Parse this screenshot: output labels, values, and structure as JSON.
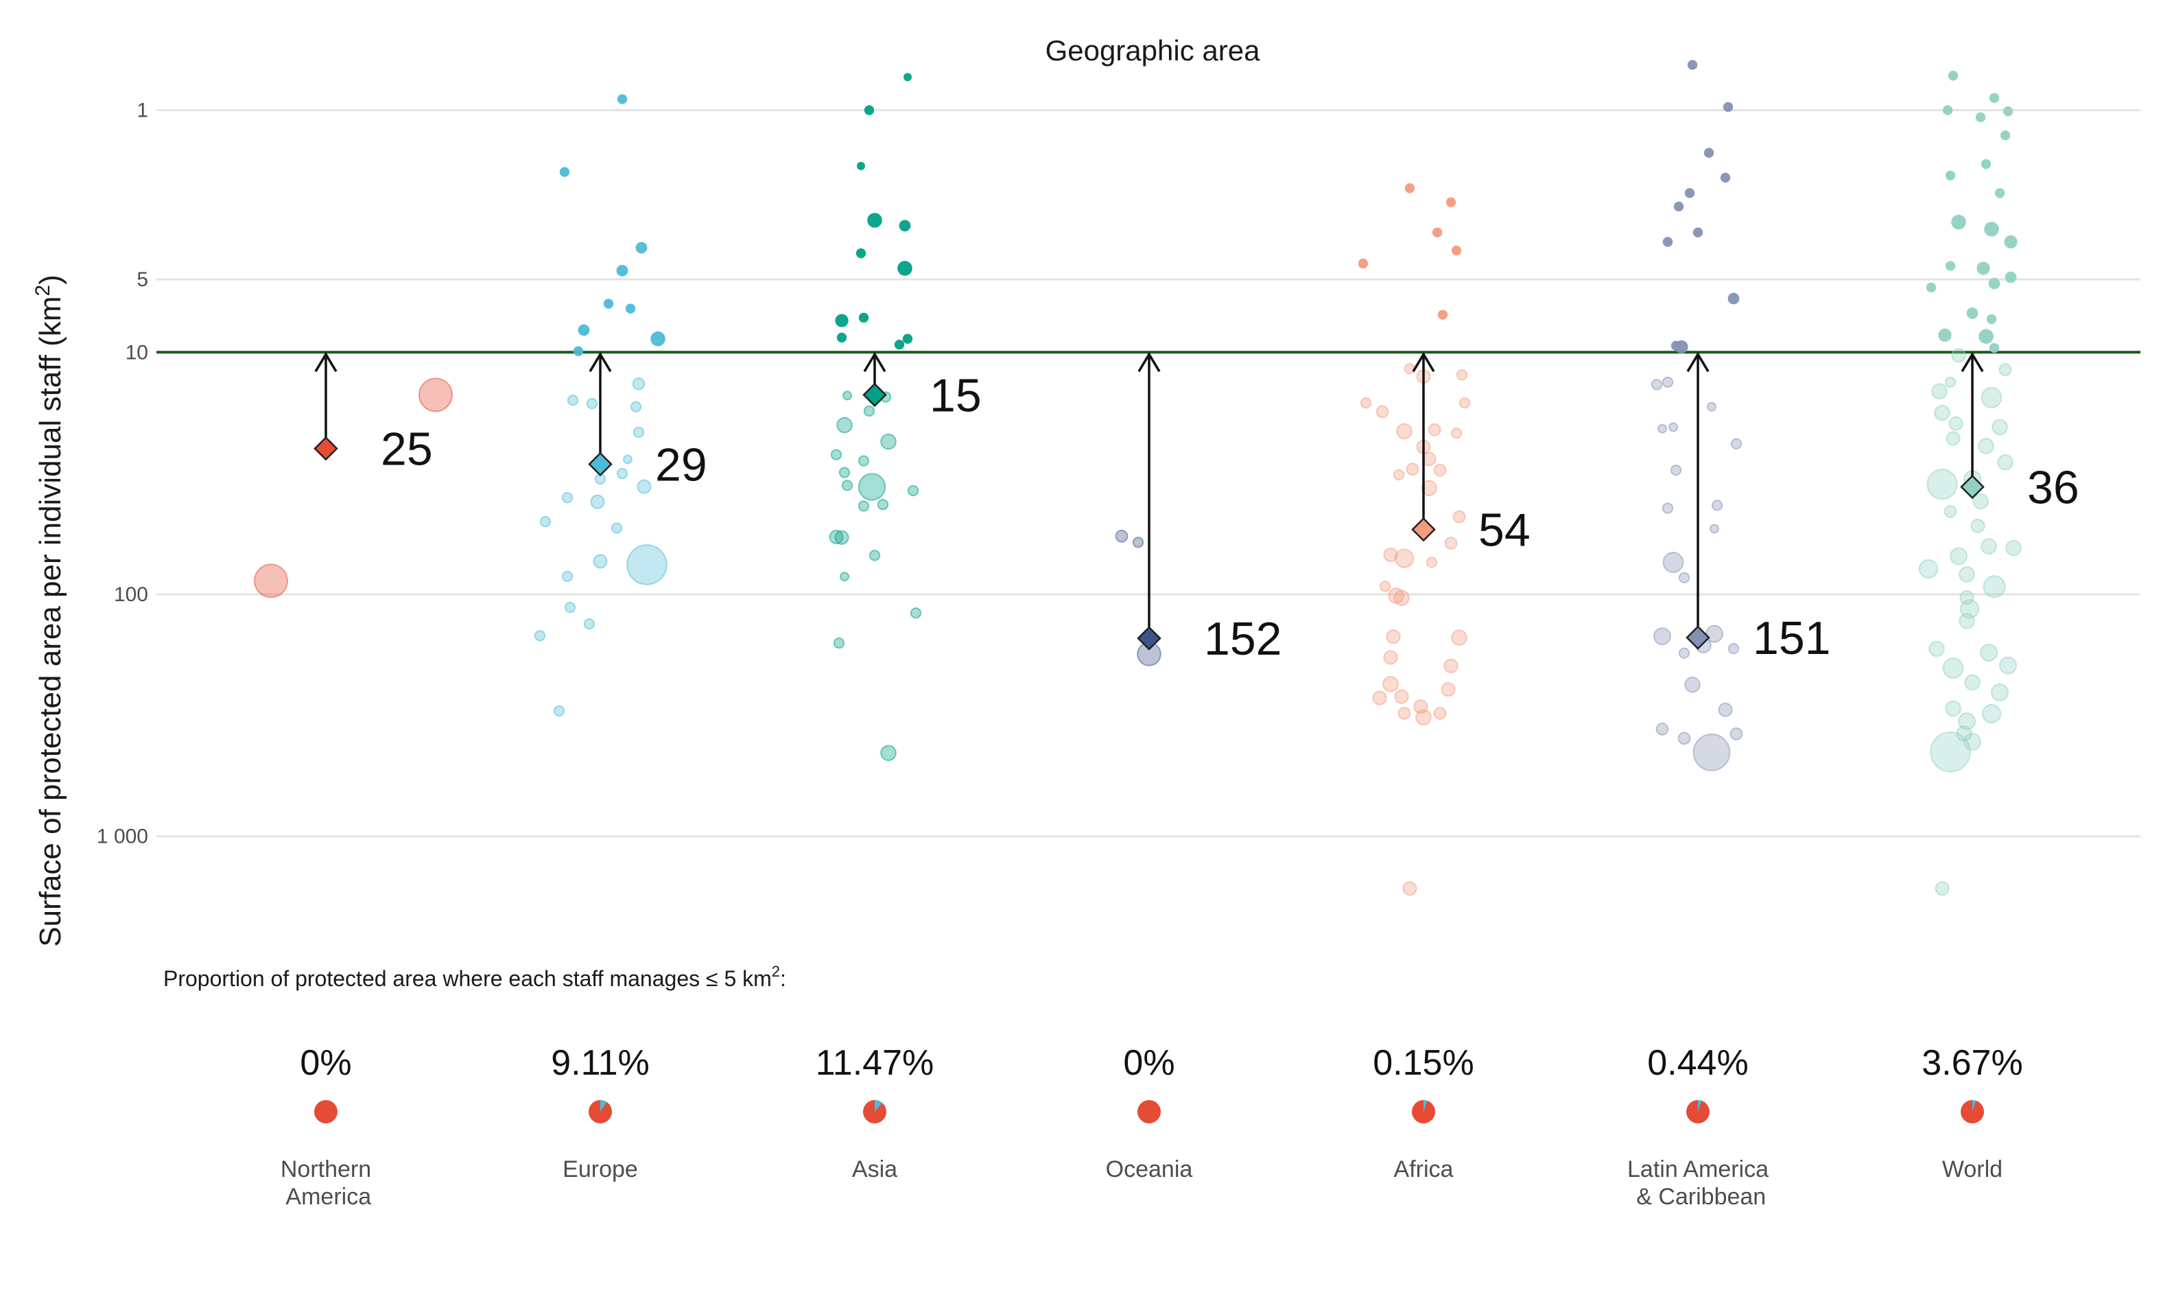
{
  "chart_data": {
    "type": "scatter",
    "title": "Geographic area",
    "ylabel": "Surface of protected area per individual staff (km²)",
    "ylabel_parts": {
      "main": "Surface of protected area per individual staff (km",
      "sup": "2",
      "end": ")"
    },
    "y_scale": "log",
    "y_reversed": true,
    "yticks": [
      {
        "value": 1,
        "label": "1"
      },
      {
        "value": 5,
        "label": "5"
      },
      {
        "value": 10,
        "label": "10"
      },
      {
        "value": 100,
        "label": "100"
      },
      {
        "value": 1000,
        "label": "1 000"
      }
    ],
    "ylim": [
      0.55,
      3000
    ],
    "reference_line": 10,
    "reference_color": "#1a5c1a",
    "proportion_note": {
      "main": "Proportion of protected area where each staff manages ≤ 5 km",
      "sup": "2",
      "end": ":"
    },
    "categories": [
      {
        "name": "Northern America",
        "label_lines": [
          "Northern",
          " America"
        ],
        "color": "#e64b35",
        "median": 25,
        "pct": "0%",
        "pct_value": 0
      },
      {
        "name": "Europe",
        "label_lines": [
          "Europe"
        ],
        "color": "#4dbbd5",
        "median": 29,
        "pct": "9.11%",
        "pct_value": 0.0911
      },
      {
        "name": "Asia",
        "label_lines": [
          "Asia"
        ],
        "color": "#00a087",
        "median": 15,
        "pct": "11.47%",
        "pct_value": 0.1147
      },
      {
        "name": "Oceania",
        "label_lines": [
          "Oceania"
        ],
        "color": "#3c5488",
        "median": 152,
        "pct": "0%",
        "pct_value": 0
      },
      {
        "name": "Africa",
        "label_lines": [
          "Africa"
        ],
        "color": "#f39b7f",
        "median": 54,
        "pct": "0.15%",
        "pct_value": 0.0015
      },
      {
        "name": "Latin America & Caribbean",
        "label_lines": [
          "Latin America",
          " & Caribbean"
        ],
        "color": "#8491b4",
        "median": 151,
        "pct": "0.44%",
        "pct_value": 0.0044
      },
      {
        "name": "World",
        "label_lines": [
          "World"
        ],
        "color": "#91d1c2",
        "median": 36,
        "pct": "3.67%",
        "pct_value": 0.0367
      }
    ],
    "points": [
      [
        [
          15,
          0.4,
          2
        ],
        [
          88,
          -0.2,
          2
        ]
      ],
      [
        [
          0.9,
          0.08,
          0.6
        ],
        [
          1.8,
          -0.13,
          0.6
        ],
        [
          3.7,
          0.15,
          0.7
        ],
        [
          4.6,
          0.08,
          0.7
        ],
        [
          6.6,
          0.11,
          0.6
        ],
        [
          6.3,
          0.03,
          0.6
        ],
        [
          8.1,
          -0.06,
          0.7
        ],
        [
          8.8,
          0.21,
          0.9
        ],
        [
          9.9,
          -0.08,
          0.6
        ],
        [
          13.5,
          0.14,
          0.7
        ],
        [
          15.8,
          -0.1,
          0.6
        ],
        [
          16.3,
          -0.03,
          0.6
        ],
        [
          16.8,
          0.13,
          0.6
        ],
        [
          21.4,
          0.14,
          0.6
        ],
        [
          27.7,
          0.1,
          0.5
        ],
        [
          31.7,
          0.08,
          0.6
        ],
        [
          33.4,
          0.0,
          0.6
        ],
        [
          35.9,
          0.16,
          0.8
        ],
        [
          39.9,
          -0.12,
          0.6
        ],
        [
          41.5,
          -0.01,
          0.8
        ],
        [
          50.1,
          -0.2,
          0.6
        ],
        [
          53.3,
          0.06,
          0.6
        ],
        [
          73.1,
          0.0,
          0.8
        ],
        [
          75.5,
          0.17,
          2.4
        ],
        [
          84.3,
          -0.12,
          0.6
        ],
        [
          113.3,
          -0.11,
          0.6
        ],
        [
          132.6,
          -0.04,
          0.6
        ],
        [
          148.3,
          -0.22,
          0.6
        ],
        [
          303.2,
          -0.15,
          0.6
        ]
      ],
      [
        [
          0.73,
          0.12,
          0.5
        ],
        [
          1.0,
          -0.02,
          0.6
        ],
        [
          1.7,
          -0.05,
          0.5
        ],
        [
          2.85,
          0.0,
          0.9
        ],
        [
          3.0,
          0.11,
          0.7
        ],
        [
          3.9,
          -0.05,
          0.6
        ],
        [
          4.5,
          0.11,
          0.9
        ],
        [
          7.4,
          -0.12,
          0.8
        ],
        [
          7.2,
          -0.04,
          0.6
        ],
        [
          8.7,
          -0.12,
          0.6
        ],
        [
          8.8,
          0.12,
          0.6
        ],
        [
          9.3,
          0.09,
          0.6
        ],
        [
          15.1,
          -0.1,
          0.5
        ],
        [
          15.3,
          0.04,
          0.6
        ],
        [
          17.5,
          -0.02,
          0.6
        ],
        [
          20.0,
          -0.11,
          0.9
        ],
        [
          23.4,
          0.05,
          0.9
        ],
        [
          26.5,
          -0.14,
          0.6
        ],
        [
          28.1,
          -0.04,
          0.6
        ],
        [
          31.4,
          -0.11,
          0.6
        ],
        [
          35.5,
          -0.1,
          0.6
        ],
        [
          36.0,
          -0.01,
          1.6
        ],
        [
          37.3,
          0.14,
          0.6
        ],
        [
          43.2,
          -0.04,
          0.6
        ],
        [
          42.6,
          0.03,
          0.6
        ],
        [
          58.0,
          -0.14,
          0.8
        ],
        [
          58.3,
          -0.12,
          0.8
        ],
        [
          69.1,
          0.0,
          0.6
        ],
        [
          84.5,
          -0.11,
          0.5
        ],
        [
          119.5,
          0.15,
          0.6
        ],
        [
          159.0,
          -0.13,
          0.6
        ],
        [
          452.5,
          0.05,
          0.9
        ]
      ],
      [
        [
          57.5,
          -0.1,
          0.7
        ],
        [
          61.0,
          -0.04,
          0.6
        ],
        [
          176.5,
          0.0,
          1.4
        ]
      ],
      [
        [
          2.1,
          -0.05,
          0.6
        ],
        [
          2.4,
          0.1,
          0.6
        ],
        [
          3.2,
          0.05,
          0.6
        ],
        [
          3.8,
          0.12,
          0.6
        ],
        [
          4.3,
          -0.22,
          0.6
        ],
        [
          7.0,
          0.07,
          0.6
        ],
        [
          11.7,
          -0.05,
          0.6
        ],
        [
          12.4,
          0.14,
          0.6
        ],
        [
          12.6,
          0.0,
          0.8
        ],
        [
          16.2,
          -0.21,
          0.6
        ],
        [
          16.2,
          0.15,
          0.6
        ],
        [
          17.6,
          -0.15,
          0.7
        ],
        [
          20.9,
          0.04,
          0.7
        ],
        [
          21.6,
          0.12,
          0.6
        ],
        [
          21.2,
          -0.07,
          0.9
        ],
        [
          24.6,
          0.0,
          0.8
        ],
        [
          27.6,
          0.02,
          0.8
        ],
        [
          30.4,
          -0.04,
          0.7
        ],
        [
          30.7,
          0.06,
          0.7
        ],
        [
          32.1,
          -0.09,
          0.6
        ],
        [
          36.4,
          0.02,
          0.9
        ],
        [
          47.8,
          0.13,
          0.7
        ],
        [
          61.5,
          0.1,
          0.7
        ],
        [
          68.7,
          -0.12,
          0.8
        ],
        [
          71.0,
          -0.07,
          1.1
        ],
        [
          73.8,
          0.03,
          0.6
        ],
        [
          92.7,
          -0.14,
          0.6
        ],
        [
          101.3,
          -0.1,
          0.9
        ],
        [
          103.5,
          -0.08,
          0.9
        ],
        [
          149.6,
          -0.11,
          0.8
        ],
        [
          151.1,
          0.13,
          0.9
        ],
        [
          182.5,
          -0.12,
          0.8
        ],
        [
          197.6,
          0.1,
          0.8
        ],
        [
          234.9,
          -0.12,
          0.9
        ],
        [
          247.1,
          0.09,
          0.8
        ],
        [
          264.8,
          -0.08,
          0.8
        ],
        [
          268.2,
          -0.16,
          0.8
        ],
        [
          291.2,
          -0.01,
          0.8
        ],
        [
          310.3,
          -0.07,
          0.7
        ],
        [
          310.3,
          0.06,
          0.7
        ],
        [
          322.5,
          0.0,
          0.9
        ],
        [
          1641.3,
          -0.05,
          0.8
        ]
      ],
      [
        [
          0.65,
          -0.02,
          0.6
        ],
        [
          0.97,
          0.11,
          0.6
        ],
        [
          1.5,
          0.04,
          0.6
        ],
        [
          1.9,
          0.1,
          0.6
        ],
        [
          2.2,
          -0.03,
          0.6
        ],
        [
          2.5,
          -0.07,
          0.6
        ],
        [
          3.2,
          0.0,
          0.6
        ],
        [
          3.5,
          -0.11,
          0.6
        ],
        [
          6.0,
          0.13,
          0.7
        ],
        [
          9.5,
          -0.06,
          0.8
        ],
        [
          9.4,
          -0.08,
          0.6
        ],
        [
          13.3,
          -0.11,
          0.6
        ],
        [
          13.6,
          -0.15,
          0.6
        ],
        [
          16.8,
          0.05,
          0.5
        ],
        [
          20.4,
          -0.09,
          0.5
        ],
        [
          20.7,
          -0.13,
          0.5
        ],
        [
          23.9,
          0.14,
          0.6
        ],
        [
          30.7,
          -0.08,
          0.6
        ],
        [
          42.9,
          0.07,
          0.6
        ],
        [
          44.1,
          -0.11,
          0.6
        ],
        [
          53.6,
          0.06,
          0.5
        ],
        [
          73.8,
          -0.09,
          1.2
        ],
        [
          85.4,
          -0.05,
          0.6
        ],
        [
          149.1,
          -0.13,
          1.0
        ],
        [
          145.7,
          0.06,
          1.0
        ],
        [
          162.4,
          0.02,
          0.9
        ],
        [
          175.0,
          -0.05,
          0.6
        ],
        [
          167.7,
          0.13,
          0.6
        ],
        [
          236.4,
          -0.02,
          0.9
        ],
        [
          300.0,
          0.1,
          0.8
        ],
        [
          360.5,
          -0.13,
          0.7
        ],
        [
          393.7,
          -0.05,
          0.7
        ],
        [
          377.4,
          0.14,
          0.7
        ],
        [
          450.0,
          0.05,
          2.2
        ]
      ],
      [
        [
          0.72,
          -0.07,
          0.6
        ],
        [
          0.89,
          0.08,
          0.6
        ],
        [
          1.0,
          -0.09,
          0.6
        ],
        [
          1.07,
          0.03,
          0.6
        ],
        [
          1.01,
          0.13,
          0.6
        ],
        [
          1.27,
          0.12,
          0.6
        ],
        [
          1.86,
          -0.08,
          0.6
        ],
        [
          1.67,
          0.05,
          0.6
        ],
        [
          2.2,
          0.1,
          0.6
        ],
        [
          2.9,
          -0.05,
          0.9
        ],
        [
          3.1,
          0.07,
          0.9
        ],
        [
          3.5,
          0.14,
          0.8
        ],
        [
          4.4,
          -0.08,
          0.6
        ],
        [
          4.5,
          0.04,
          0.8
        ],
        [
          4.9,
          0.14,
          0.7
        ],
        [
          5.4,
          -0.15,
          0.6
        ],
        [
          5.2,
          0.08,
          0.7
        ],
        [
          6.9,
          0.0,
          0.7
        ],
        [
          7.3,
          0.07,
          0.6
        ],
        [
          8.5,
          -0.1,
          0.8
        ],
        [
          8.6,
          0.05,
          0.9
        ],
        [
          9.6,
          0.08,
          0.6
        ],
        [
          10.3,
          -0.05,
          0.8
        ],
        [
          11.8,
          0.12,
          0.7
        ],
        [
          13.3,
          -0.08,
          0.6
        ],
        [
          14.5,
          -0.12,
          0.9
        ],
        [
          15.4,
          0.07,
          1.2
        ],
        [
          17.8,
          -0.11,
          0.9
        ],
        [
          19.7,
          -0.06,
          0.8
        ],
        [
          20.4,
          0.1,
          0.9
        ],
        [
          22.7,
          -0.07,
          0.8
        ],
        [
          24.4,
          0.05,
          0.9
        ],
        [
          28.5,
          0.12,
          0.9
        ],
        [
          35.1,
          -0.11,
          1.8
        ],
        [
          33.4,
          0.0,
          1.0
        ],
        [
          41.3,
          0.03,
          0.9
        ],
        [
          45.5,
          -0.08,
          0.7
        ],
        [
          52.2,
          0.02,
          0.8
        ],
        [
          63.4,
          0.06,
          0.9
        ],
        [
          64.4,
          0.15,
          0.9
        ],
        [
          69.6,
          -0.05,
          1.0
        ],
        [
          78.5,
          -0.16,
          1.1
        ],
        [
          82.7,
          -0.02,
          0.9
        ],
        [
          93.0,
          0.08,
          1.3
        ],
        [
          103.1,
          -0.02,
          0.8
        ],
        [
          115.0,
          -0.01,
          1.1
        ],
        [
          128.9,
          -0.02,
          0.9
        ],
        [
          168.1,
          -0.13,
          0.9
        ],
        [
          174.3,
          0.06,
          1.0
        ],
        [
          196.7,
          0.13,
          1.0
        ],
        [
          201.8,
          -0.07,
          1.2
        ],
        [
          231.3,
          0.0,
          0.9
        ],
        [
          254.3,
          0.1,
          1.0
        ],
        [
          296.5,
          -0.07,
          0.9
        ],
        [
          311.5,
          0.07,
          1.1
        ],
        [
          334.5,
          -0.02,
          1.0
        ],
        [
          376.2,
          -0.03,
          0.9
        ],
        [
          406.4,
          0.0,
          1.0
        ],
        [
          448.0,
          -0.08,
          2.4
        ],
        [
          1641.3,
          -0.11,
          0.8
        ]
      ]
    ]
  }
}
